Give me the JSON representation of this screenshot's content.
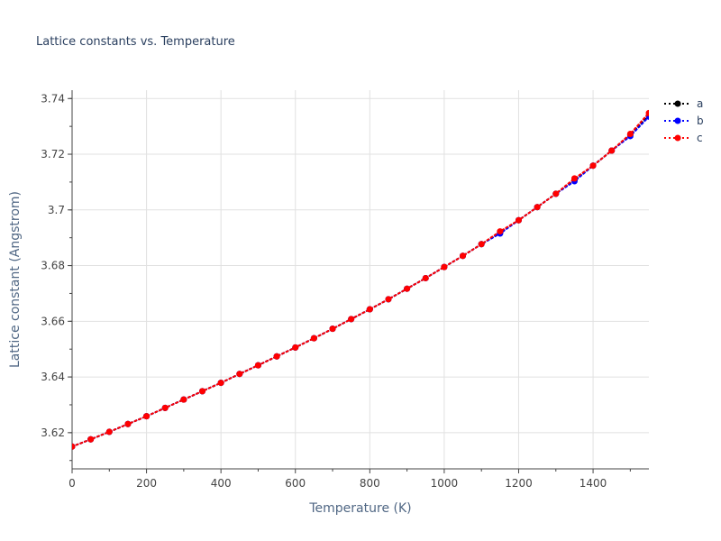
{
  "chart_data": {
    "type": "line",
    "title": "Lattice constants vs. Temperature",
    "xlabel": "Temperature (K)",
    "ylabel": "Lattice constant (Angstrom)",
    "xlim": [
      0,
      1550
    ],
    "ylim": [
      3.607,
      3.743
    ],
    "x_ticks": [
      0,
      200,
      400,
      600,
      800,
      1000,
      1200,
      1400
    ],
    "y_ticks": [
      3.62,
      3.64,
      3.66,
      3.68,
      3.7,
      3.72,
      3.74
    ],
    "y_tick_labels": [
      "3.62",
      "3.64",
      "3.66",
      "3.68",
      "3.7",
      "3.72",
      "3.74"
    ],
    "grid": true,
    "legend_position": "top-right",
    "line_style": "dotted",
    "x": [
      0,
      50,
      100,
      150,
      200,
      250,
      300,
      350,
      400,
      450,
      500,
      550,
      600,
      650,
      700,
      750,
      800,
      850,
      900,
      950,
      1000,
      1050,
      1100,
      1150,
      1200,
      1250,
      1300,
      1350,
      1400,
      1450,
      1500,
      1550
    ],
    "series": [
      {
        "name": "a",
        "color": "#000000",
        "values": [
          3.615,
          3.6176,
          3.6203,
          3.6231,
          3.6259,
          3.6289,
          3.6319,
          3.6349,
          3.6379,
          3.6411,
          3.6442,
          3.6474,
          3.6506,
          3.6539,
          3.6573,
          3.6608,
          3.6643,
          3.6679,
          3.6717,
          3.6755,
          3.6795,
          3.6835,
          3.6877,
          3.6918,
          3.6963,
          3.701,
          3.7058,
          3.7107,
          3.7159,
          3.7213,
          3.727,
          3.7338
        ]
      },
      {
        "name": "b",
        "color": "#0000ff",
        "values": [
          3.615,
          3.6176,
          3.6203,
          3.6231,
          3.6259,
          3.6289,
          3.6319,
          3.6349,
          3.6379,
          3.6411,
          3.6442,
          3.6474,
          3.6506,
          3.6539,
          3.6573,
          3.6608,
          3.6643,
          3.6679,
          3.6717,
          3.6755,
          3.6795,
          3.6835,
          3.6877,
          3.6915,
          3.6963,
          3.701,
          3.7058,
          3.7103,
          3.7159,
          3.7213,
          3.7265,
          3.7335
        ]
      },
      {
        "name": "c",
        "color": "#ff0000",
        "values": [
          3.615,
          3.6176,
          3.6203,
          3.6231,
          3.6259,
          3.6289,
          3.6319,
          3.6349,
          3.6379,
          3.6411,
          3.6442,
          3.6474,
          3.6506,
          3.6539,
          3.6573,
          3.6608,
          3.6643,
          3.6679,
          3.6717,
          3.6755,
          3.6795,
          3.6835,
          3.6877,
          3.6923,
          3.6963,
          3.701,
          3.7058,
          3.7113,
          3.7159,
          3.7213,
          3.7273,
          3.7348
        ]
      }
    ]
  }
}
